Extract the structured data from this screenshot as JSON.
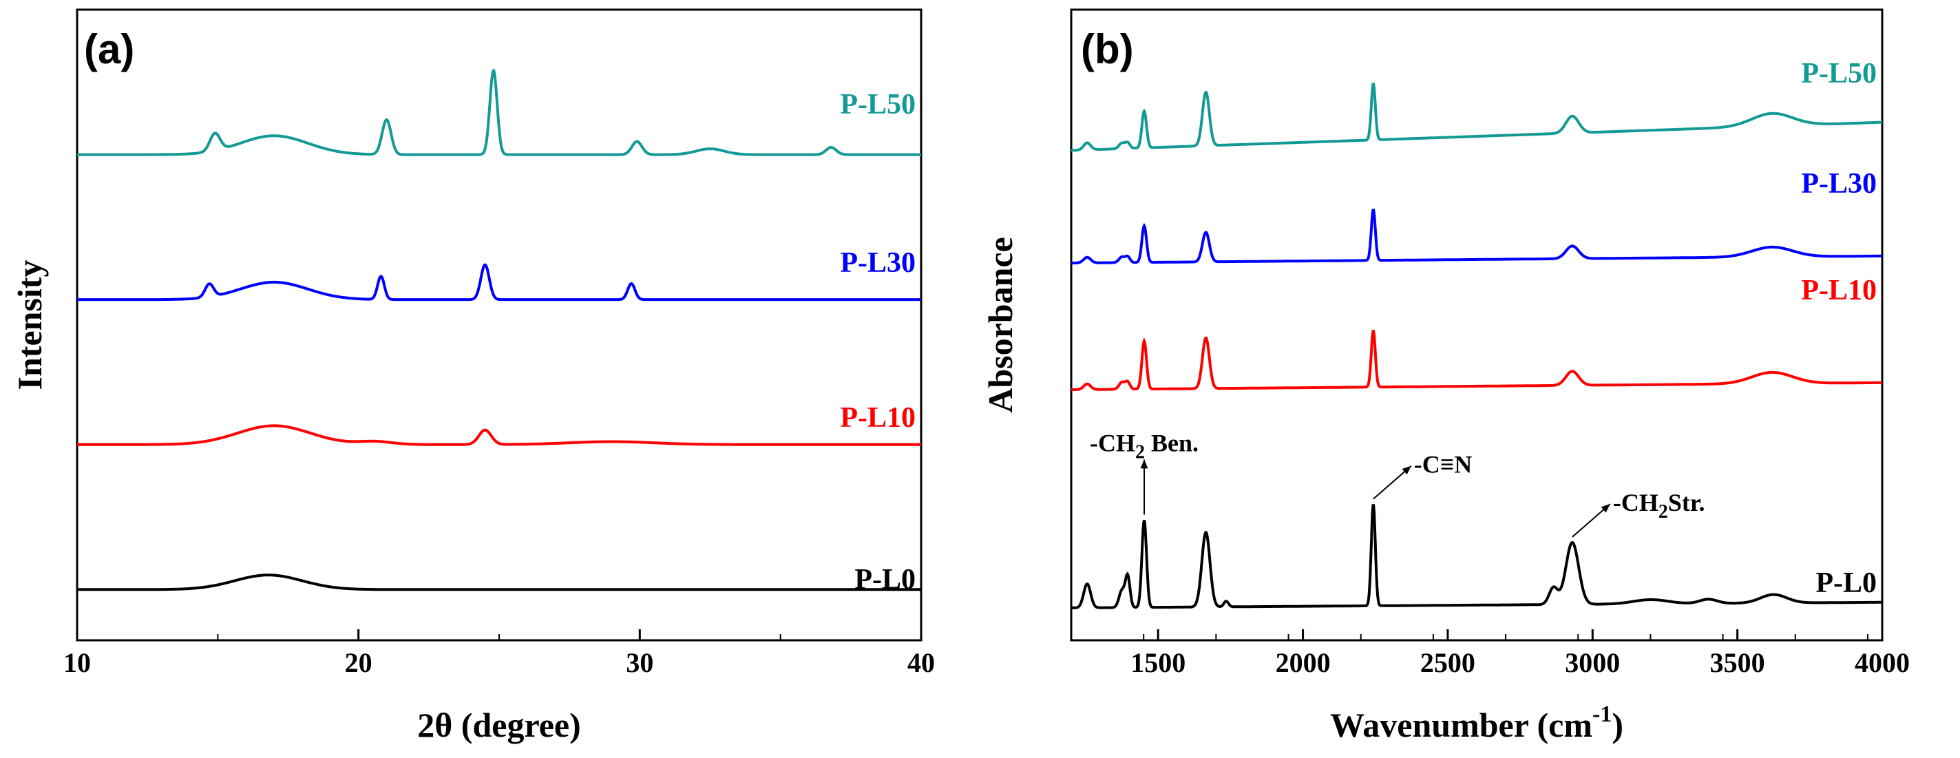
{
  "chart_data": [
    {
      "type": "line",
      "panel_label": "(a)",
      "xlabel": "2θ (degree)",
      "ylabel": "Intensity",
      "xlim": [
        10,
        40
      ],
      "xticks": [
        10,
        20,
        30,
        40
      ],
      "xtick_labels": [
        "10",
        "20",
        "30",
        "40"
      ],
      "yticks": false,
      "series": [
        {
          "name": "P-L0",
          "color": "#000000",
          "baseline": 0.0,
          "peaks": [
            [
              16.8,
              0.1,
              1.2
            ]
          ]
        },
        {
          "name": "P-L10",
          "color": "#ff0000",
          "baseline": 1.0,
          "peaks": [
            [
              17.0,
              0.13,
              1.3
            ],
            [
              24.5,
              0.1,
              0.22
            ],
            [
              20.6,
              0.02,
              0.6
            ],
            [
              29.0,
              0.02,
              1.5
            ]
          ]
        },
        {
          "name": "P-L30",
          "color": "#0000ff",
          "baseline": 2.0,
          "peaks": [
            [
              17.0,
              0.12,
              1.2
            ],
            [
              14.7,
              0.09,
              0.15
            ],
            [
              20.8,
              0.16,
              0.12
            ],
            [
              24.5,
              0.24,
              0.15
            ],
            [
              29.7,
              0.11,
              0.13
            ]
          ]
        },
        {
          "name": "P-L50",
          "color": "#139a94",
          "baseline": 3.0,
          "peaks": [
            [
              17.0,
              0.13,
              1.2
            ],
            [
              14.9,
              0.12,
              0.18
            ],
            [
              21.0,
              0.24,
              0.16
            ],
            [
              24.8,
              0.58,
              0.13
            ],
            [
              29.9,
              0.09,
              0.18
            ],
            [
              32.5,
              0.04,
              0.5
            ],
            [
              36.8,
              0.05,
              0.18
            ]
          ]
        }
      ]
    },
    {
      "type": "line",
      "panel_label": "(b)",
      "xlabel": "Wavenumber (cm",
      "xlabel_sup": "-1",
      "xlabel_tail": ")",
      "ylabel": "Absorbance",
      "xlim": [
        1200,
        4000
      ],
      "xticks": [
        1500,
        2000,
        2500,
        3000,
        3500,
        4000
      ],
      "xtick_labels": [
        "1500",
        "2000",
        "2500",
        "3000",
        "3500",
        "4000"
      ],
      "yticks": false,
      "series": [
        {
          "name": "P-L0",
          "color": "#000000",
          "baseline": 0.0,
          "peaks": [
            [
              1255,
              0.17,
              12
            ],
            [
              1375,
              0.12,
              10
            ],
            [
              1395,
              0.22,
              8
            ],
            [
              1452,
              0.62,
              8
            ],
            [
              1665,
              0.53,
              14
            ],
            [
              1735,
              0.04,
              8
            ],
            [
              2243,
              0.72,
              7
            ],
            [
              2865,
              0.12,
              15
            ],
            [
              2930,
              0.44,
              22
            ],
            [
              3200,
              0.03,
              60
            ],
            [
              3400,
              0.03,
              30
            ],
            [
              3625,
              0.06,
              45
            ]
          ],
          "bg": [
            0.05,
            0.04
          ]
        },
        {
          "name": "P-L10",
          "color": "#ff0000",
          "baseline": 1.6,
          "peaks": [
            [
              1255,
              0.04,
              12
            ],
            [
              1375,
              0.05,
              10
            ],
            [
              1395,
              0.05,
              8
            ],
            [
              1452,
              0.34,
              8
            ],
            [
              1665,
              0.36,
              12
            ],
            [
              2243,
              0.4,
              7
            ],
            [
              2930,
              0.1,
              22
            ],
            [
              3620,
              0.08,
              70
            ]
          ],
          "bg": [
            0.0,
            0.05
          ]
        },
        {
          "name": "P-L30",
          "color": "#0000ff",
          "baseline": 2.5,
          "peaks": [
            [
              1255,
              0.04,
              12
            ],
            [
              1375,
              0.04,
              10
            ],
            [
              1395,
              0.04,
              8
            ],
            [
              1452,
              0.26,
              8
            ],
            [
              1665,
              0.21,
              12
            ],
            [
              2243,
              0.36,
              7
            ],
            [
              2930,
              0.09,
              22
            ],
            [
              3620,
              0.07,
              70
            ]
          ],
          "bg": [
            0.0,
            0.05
          ]
        },
        {
          "name": "P-L50",
          "color": "#139a94",
          "baseline": 3.3,
          "peaks": [
            [
              1255,
              0.05,
              12
            ],
            [
              1375,
              0.04,
              10
            ],
            [
              1395,
              0.04,
              8
            ],
            [
              1452,
              0.26,
              8
            ],
            [
              1665,
              0.38,
              12
            ],
            [
              2243,
              0.4,
              7
            ],
            [
              2930,
              0.12,
              22
            ],
            [
              3620,
              0.09,
              70
            ]
          ],
          "bg": [
            0.0,
            0.2
          ]
        }
      ],
      "annotations": [
        {
          "text": "-CH",
          "sub": "2",
          "tail": " Ben.",
          "x": 1452,
          "series": "P-L0"
        },
        {
          "text": "-C≡N",
          "sub": "",
          "tail": "",
          "x": 2243,
          "series": "P-L0"
        },
        {
          "text": "-CH",
          "sub": "2",
          "tail": "Str.",
          "x": 2930,
          "series": "P-L0"
        }
      ]
    }
  ]
}
